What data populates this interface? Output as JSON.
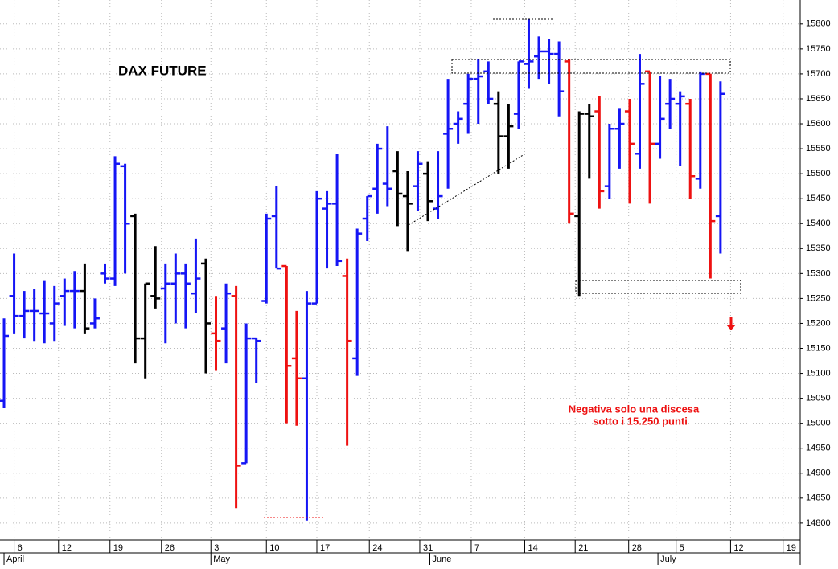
{
  "chart_data": {
    "type": "ohlc",
    "title": "DAX FUTURE",
    "annotations": [
      "Negativa solo una discesa",
      "sotto i 15.250 punti"
    ],
    "x": [
      0,
      1,
      2,
      3,
      4,
      5,
      6,
      7,
      8,
      9,
      10,
      11,
      12,
      13,
      14,
      15,
      16,
      17,
      18,
      19,
      20,
      21,
      22,
      23,
      24,
      25,
      26,
      27,
      28,
      29,
      30,
      31,
      32,
      33,
      34,
      35,
      36,
      37,
      38,
      39,
      40,
      41,
      42,
      43,
      44,
      45,
      46,
      47,
      48,
      49,
      50,
      51,
      52,
      53,
      54,
      55,
      56,
      57,
      58,
      59,
      60,
      61,
      62,
      63,
      64,
      65,
      66,
      67,
      68,
      69,
      70,
      71
    ],
    "open": [
      15045,
      15255,
      15215,
      15225,
      15220,
      15200,
      15255,
      15265,
      15265,
      15200,
      15300,
      15290,
      15515,
      15415,
      15170,
      15255,
      15270,
      15280,
      15300,
      15260,
      15320,
      15180,
      15190,
      15255,
      14920,
      15170,
      15245,
      15415,
      15315,
      15130,
      15090,
      15240,
      15430,
      15440,
      15295,
      15130,
      15410,
      15470,
      15480,
      15505,
      15455,
      15475,
      15500,
      15430,
      15580,
      15600,
      15640,
      15690,
      15705,
      15640,
      15575,
      15620,
      15720,
      15735,
      15745,
      15740,
      15725,
      15415,
      15620,
      15625,
      15475,
      15590,
      15625,
      15540,
      15705,
      15560,
      15640,
      15640,
      15640,
      15490,
      15700,
      15415
    ],
    "high": [
      15210,
      15340,
      15265,
      15270,
      15285,
      15275,
      15290,
      15305,
      15320,
      15250,
      15320,
      15535,
      15520,
      15420,
      15280,
      15355,
      15320,
      15340,
      15320,
      15370,
      15330,
      15255,
      15280,
      15275,
      15200,
      15170,
      15420,
      15475,
      15315,
      15225,
      15265,
      15465,
      15465,
      15540,
      15330,
      15390,
      15455,
      15560,
      15595,
      15545,
      15505,
      15545,
      15525,
      15545,
      15690,
      15625,
      15700,
      15730,
      15725,
      15665,
      15640,
      15725,
      15810,
      15775,
      15770,
      15765,
      15730,
      15625,
      15640,
      15655,
      15600,
      15630,
      15650,
      15740,
      15705,
      15695,
      15690,
      15665,
      15650,
      15705,
      15700,
      15685
    ],
    "low": [
      15030,
      15180,
      15170,
      15165,
      15160,
      15165,
      15195,
      15190,
      15180,
      15190,
      15280,
      15275,
      15300,
      15120,
      15090,
      15230,
      15160,
      15200,
      15190,
      15220,
      15100,
      15105,
      15120,
      14830,
      14920,
      15080,
      15240,
      15310,
      15000,
      14995,
      14805,
      15240,
      15310,
      15315,
      14955,
      15095,
      15365,
      15420,
      15435,
      15395,
      15345,
      15425,
      15405,
      15410,
      15470,
      15560,
      15580,
      15600,
      15640,
      15500,
      15510,
      15590,
      15670,
      15690,
      15680,
      15615,
      15400,
      15255,
      15490,
      15430,
      15450,
      15510,
      15440,
      15510,
      15440,
      15530,
      15590,
      15515,
      15450,
      15470,
      15290,
      15340
    ],
    "close": [
      15175,
      15215,
      15225,
      15225,
      15220,
      15240,
      15265,
      15265,
      15190,
      15210,
      15290,
      15520,
      15400,
      15170,
      15280,
      15250,
      15280,
      15300,
      15280,
      15290,
      15200,
      15165,
      15260,
      14915,
      15170,
      15165,
      15410,
      15310,
      15115,
      15090,
      15240,
      15450,
      15440,
      15325,
      15165,
      15380,
      15455,
      15550,
      15470,
      15460,
      15440,
      15520,
      15445,
      15455,
      15590,
      15610,
      15690,
      15695,
      15650,
      15575,
      15595,
      15725,
      15725,
      15745,
      15740,
      15665,
      15420,
      15620,
      15615,
      15465,
      15590,
      15600,
      15560,
      15680,
      15560,
      15610,
      15650,
      15655,
      15495,
      15700,
      15405,
      15660
    ],
    "colors": [
      "#1515f5",
      "#1515f5",
      "#1515f5",
      "#1515f5",
      "#1515f5",
      "#1515f5",
      "#1515f5",
      "#1515f5",
      "#000000",
      "#1515f5",
      "#1515f5",
      "#1515f5",
      "#1515f5",
      "#000000",
      "#000000",
      "#000000",
      "#1515f5",
      "#1515f5",
      "#1515f5",
      "#1515f5",
      "#000000",
      "#ee1111",
      "#1515f5",
      "#ee1111",
      "#1515f5",
      "#1515f5",
      "#1515f5",
      "#1515f5",
      "#ee1111",
      "#ee1111",
      "#1515f5",
      "#1515f5",
      "#1515f5",
      "#1515f5",
      "#ee1111",
      "#1515f5",
      "#1515f5",
      "#1515f5",
      "#1515f5",
      "#000000",
      "#000000",
      "#1515f5",
      "#000000",
      "#1515f5",
      "#1515f5",
      "#1515f5",
      "#1515f5",
      "#1515f5",
      "#1515f5",
      "#000000",
      "#000000",
      "#1515f5",
      "#1515f5",
      "#1515f5",
      "#1515f5",
      "#1515f5",
      "#ee1111",
      "#000000",
      "#000000",
      "#ee1111",
      "#1515f5",
      "#1515f5",
      "#ee1111",
      "#1515f5",
      "#ee1111",
      "#1515f5",
      "#1515f5",
      "#1515f5",
      "#ee1111",
      "#1515f5",
      "#ee1111",
      "#1515f5"
    ],
    "xlim": [
      -0.4,
      78.9
    ],
    "xticks": [
      {
        "value": 1,
        "label": "6"
      },
      {
        "value": 5.4,
        "label": "12"
      },
      {
        "value": 10.5,
        "label": "19"
      },
      {
        "value": 15.6,
        "label": "26"
      },
      {
        "value": 20.5,
        "label": "3"
      },
      {
        "value": 26,
        "label": "10"
      },
      {
        "value": 31,
        "label": "17"
      },
      {
        "value": 36.2,
        "label": "24"
      },
      {
        "value": 41.2,
        "label": "31"
      },
      {
        "value": 46.3,
        "label": "7"
      },
      {
        "value": 51.6,
        "label": "14"
      },
      {
        "value": 56.6,
        "label": "21"
      },
      {
        "value": 61.9,
        "label": "28"
      },
      {
        "value": 66.6,
        "label": "5"
      },
      {
        "value": 72,
        "label": "12"
      },
      {
        "value": 77.2,
        "label": "19"
      }
    ],
    "months": [
      {
        "value": 0,
        "label": "April"
      },
      {
        "value": 20.5,
        "label": "May"
      },
      {
        "value": 42.2,
        "label": "June"
      },
      {
        "value": 64.8,
        "label": "July"
      }
    ],
    "ylim": [
      14766,
      15848
    ],
    "yticks": [
      14800,
      14850,
      14900,
      14950,
      15000,
      15050,
      15100,
      15150,
      15200,
      15250,
      15300,
      15350,
      15400,
      15450,
      15500,
      15550,
      15600,
      15650,
      15700,
      15750,
      15800
    ],
    "grid": true
  }
}
